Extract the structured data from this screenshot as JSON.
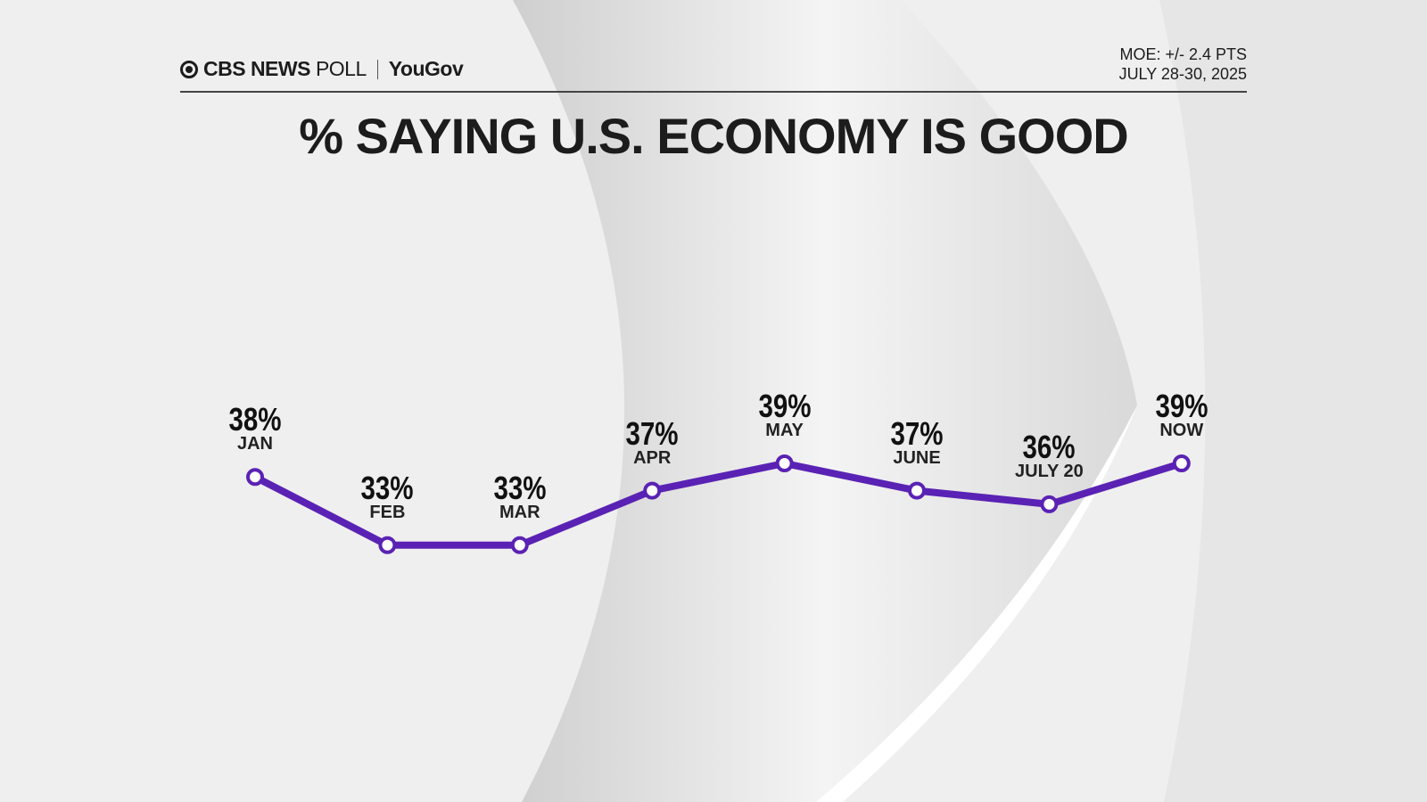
{
  "header": {
    "brand": "CBS NEWS",
    "brand_suffix": "POLL",
    "partner": "YouGov",
    "moe": "MOE: +/- 2.4 PTS",
    "dates": "JULY 28-30, 2025"
  },
  "chart_data": {
    "type": "line",
    "title": "% SAYING U.S. ECONOMY IS GOOD",
    "categories": [
      "JAN",
      "FEB",
      "MAR",
      "APR",
      "MAY",
      "JUNE",
      "JULY 20",
      "NOW"
    ],
    "values": [
      38,
      33,
      33,
      37,
      39,
      37,
      36,
      39
    ],
    "labels": [
      "38%",
      "33%",
      "33%",
      "37%",
      "39%",
      "37%",
      "36%",
      "39%"
    ],
    "line_color": "#5a22b4",
    "grid": false
  }
}
